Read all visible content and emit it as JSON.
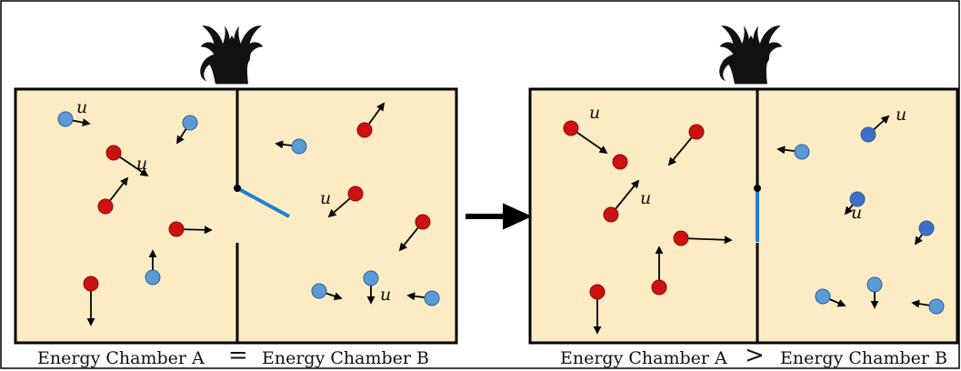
{
  "colors": {
    "chamber_fill": "#fcebc3",
    "fast_molecule": "#cc1111",
    "slow_molecule": "#5b9bd5",
    "slow_molecule_dark": "#3d6fc8",
    "door": "#1e7fd0",
    "walls": "#000000",
    "demon": "#111111"
  },
  "icons": [
    "demon-icon",
    "arrow-right-icon"
  ],
  "molecule_label": "u",
  "panels": [
    {
      "state": "before",
      "door": "open",
      "caption_a": "Energy Chamber A",
      "relation": "=",
      "caption_b": "Energy Chamber B"
    },
    {
      "state": "after",
      "door": "closed",
      "caption_a": "Energy Chamber A",
      "relation": ">",
      "caption_b": "Energy Chamber B"
    }
  ]
}
